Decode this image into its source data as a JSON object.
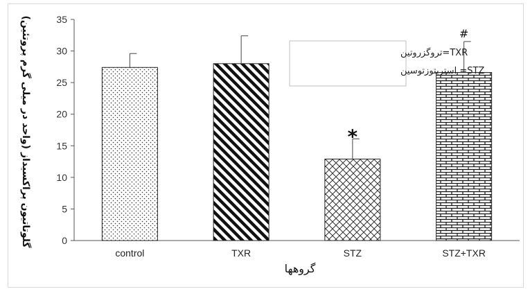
{
  "chart_data": {
    "type": "bar",
    "categories": [
      "control",
      "TXR",
      "STZ",
      "STZ+TXR"
    ],
    "values": [
      27.4,
      28.0,
      12.9,
      26.6
    ],
    "errors": [
      2.2,
      4.4,
      3.2,
      4.9
    ],
    "significance": [
      "",
      "",
      "*",
      "#"
    ],
    "patterns": [
      "dots",
      "diagonal-stripes",
      "crosshatch",
      "brick"
    ],
    "title": "",
    "xlabel": "گروهها",
    "ylabel": "گلوتاتیون پراکسیداز (واحد در میلی گرم پروتئین)",
    "ylim": [
      0,
      35
    ],
    "yticks": [
      0,
      5,
      10,
      15,
      20,
      25,
      30,
      35
    ],
    "grid": false,
    "legend_position": "top-center",
    "legend": [
      "TXR=تروگزروتین",
      "STZ= استرپتوزتوسین"
    ]
  }
}
